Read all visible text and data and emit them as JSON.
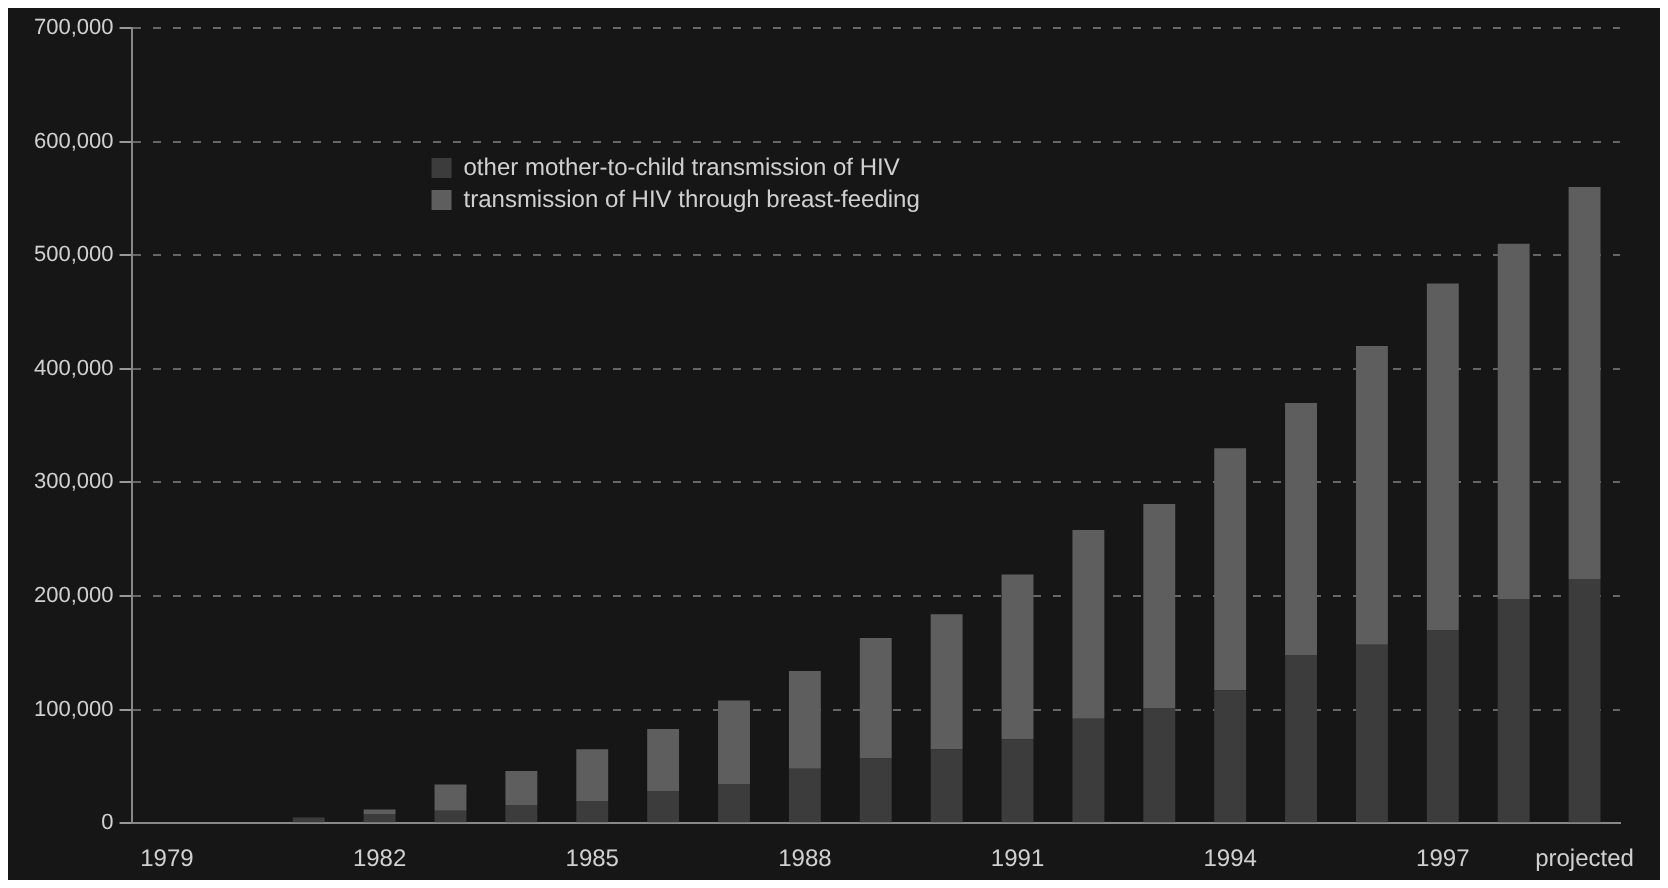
{
  "chart_data": {
    "type": "bar",
    "stacked": true,
    "categories": [
      "1979",
      null,
      null,
      "1982",
      null,
      null,
      "1985",
      null,
      null,
      "1988",
      null,
      null,
      "1991",
      null,
      null,
      "1994",
      null,
      null,
      "1997",
      null,
      "projected"
    ],
    "series": [
      {
        "name": "other mother-to-child transmission of HIV",
        "color": "#3c3c3c",
        "values": [
          null,
          null,
          5000,
          8000,
          11000,
          16000,
          19000,
          28000,
          34000,
          48000,
          57000,
          65000,
          74000,
          92000,
          101000,
          117000,
          148000,
          157000,
          170000,
          197000,
          215000
        ]
      },
      {
        "name": "transmission of HIV through breast-feeding",
        "color": "#5e5e5e",
        "values": [
          null,
          null,
          null,
          4000,
          23000,
          30000,
          46000,
          55000,
          74000,
          86000,
          106000,
          119000,
          145000,
          166000,
          180000,
          213000,
          222000,
          263000,
          305000,
          313000,
          345000
        ]
      }
    ],
    "ylim": [
      0,
      700000
    ],
    "yticks": [
      0,
      {
        "value": 100000,
        "label": "100,000"
      },
      {
        "value": 200000,
        "label": "200,000"
      },
      {
        "value": 300000,
        "label": "300,000"
      },
      {
        "value": 400000,
        "label": "400,000"
      },
      {
        "value": 500000,
        "label": "500,000"
      },
      {
        "value": 600000,
        "label": "600,000"
      },
      {
        "value": 700000,
        "label": "700,000"
      }
    ],
    "grid": "y",
    "legend": "top left"
  }
}
